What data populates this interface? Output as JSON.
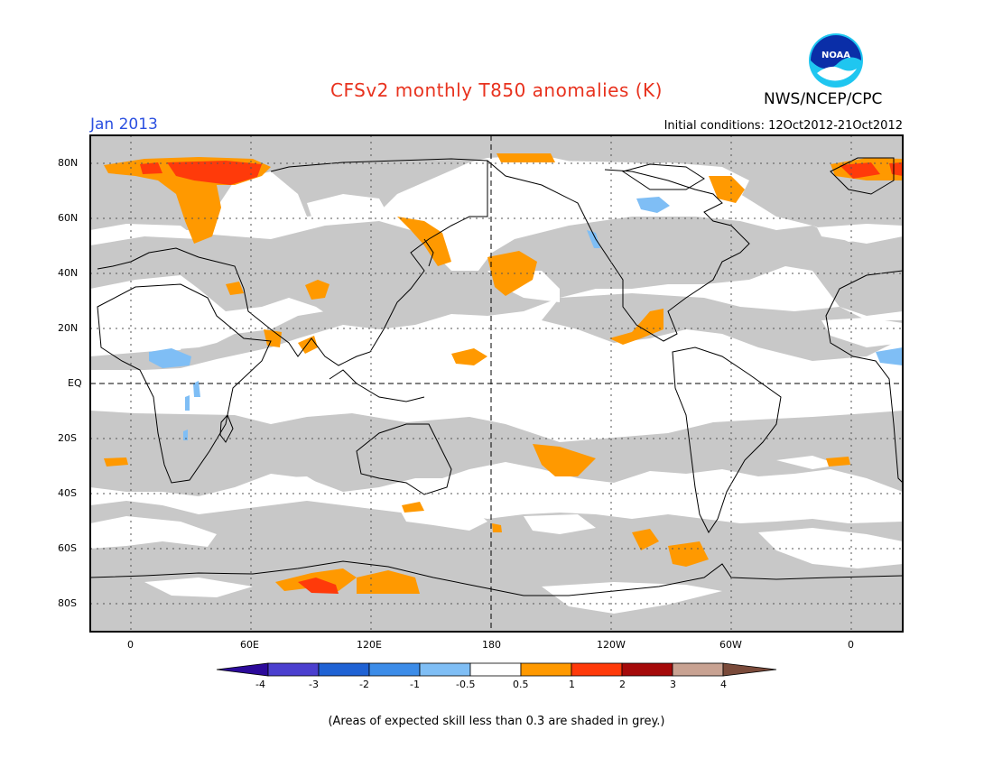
{
  "header": {
    "title": "CFSv2 monthly T850 anomalies (K)",
    "agency": "NWS/NCEP/CPC",
    "logo_text": "NOAA",
    "valid_month": "Jan 2013",
    "initial_conditions": "Initial conditions: 12Oct2012-21Oct2012"
  },
  "map": {
    "projection": "cylindrical equidistant",
    "lon_range": [
      -20,
      380
    ],
    "lat_range": [
      -90,
      90
    ],
    "lat_labels": [
      "80N",
      "60N",
      "40N",
      "20N",
      "EQ",
      "20S",
      "40S",
      "60S",
      "80S"
    ],
    "lon_labels": [
      "0",
      "60E",
      "120E",
      "180",
      "120W",
      "60W",
      "0"
    ],
    "colors": {
      "low_skill": "#c8c8c8",
      "ocean_land_base": "#ffffff",
      "coast": "#000000"
    }
  },
  "colorbar": {
    "tick_labels": [
      "-4",
      "-3",
      "-2",
      "-1",
      "-0.5",
      "0.5",
      "1",
      "2",
      "3",
      "4"
    ],
    "colors": [
      "#2c0a9a",
      "#4b3fcf",
      "#1f62d4",
      "#3c8ce8",
      "#7fbef5",
      "#ffffff",
      "#ff9900",
      "#ff3a0a",
      "#a50a0a",
      "#c8a292",
      "#7a4a3a"
    ]
  },
  "footnote": "(Areas of expected skill less than 0.3 are shaded in grey.)"
}
